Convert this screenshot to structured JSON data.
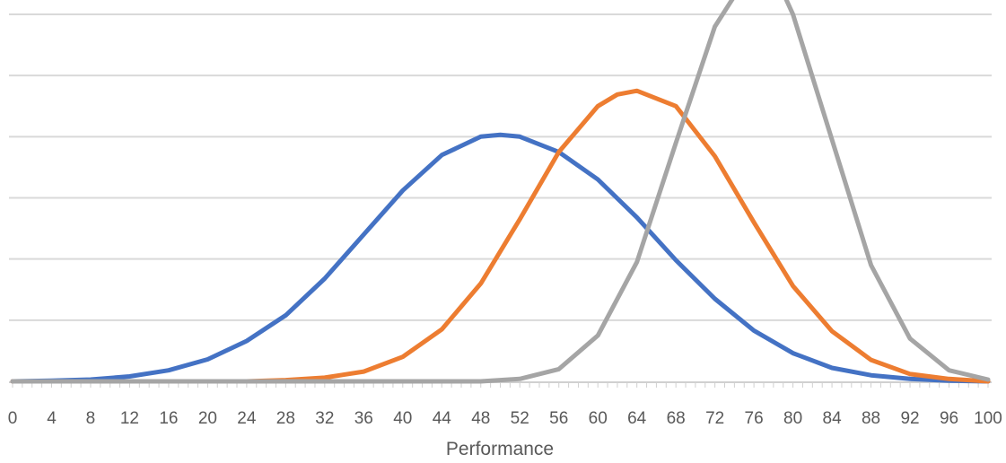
{
  "chart_data": {
    "type": "line",
    "title": "",
    "xlabel": "Performance",
    "ylabel": "",
    "xlim": [
      0,
      100
    ],
    "ylim": [
      0,
      0.06
    ],
    "x_tick_labels": [
      "0",
      "4",
      "8",
      "12",
      "16",
      "20",
      "24",
      "28",
      "32",
      "36",
      "40",
      "44",
      "48",
      "52",
      "56",
      "60",
      "64",
      "68",
      "72",
      "76",
      "80",
      "84",
      "88",
      "92",
      "96",
      "100"
    ],
    "gridlines": "horizontal",
    "legend": "none",
    "series": [
      {
        "color": "#4472C4",
        "x": [
          0,
          4,
          8,
          12,
          16,
          20,
          24,
          28,
          32,
          36,
          40,
          44,
          48,
          50,
          52,
          56,
          60,
          64,
          68,
          72,
          76,
          80,
          84,
          88,
          92,
          96,
          100
        ],
        "y": [
          0.0,
          0.0001,
          0.0003,
          0.0008,
          0.0018,
          0.0036,
          0.0066,
          0.0108,
          0.0168,
          0.024,
          0.0312,
          0.037,
          0.04,
          0.0403,
          0.04,
          0.0375,
          0.033,
          0.0268,
          0.0198,
          0.0135,
          0.0083,
          0.0046,
          0.0022,
          0.001,
          0.0004,
          0.0001,
          0.0
        ]
      },
      {
        "color": "#ED7D31",
        "x": [
          0,
          24,
          28,
          32,
          36,
          40,
          44,
          48,
          52,
          56,
          60,
          62,
          64,
          68,
          72,
          76,
          80,
          84,
          88,
          92,
          96,
          100
        ],
        "y": [
          0.0,
          0.0,
          0.0002,
          0.0006,
          0.0016,
          0.004,
          0.0085,
          0.016,
          0.0265,
          0.0375,
          0.045,
          0.0469,
          0.0475,
          0.045,
          0.0368,
          0.026,
          0.0156,
          0.0082,
          0.0035,
          0.0012,
          0.0004,
          0.0
        ]
      },
      {
        "color": "#A5A5A5",
        "x": [
          0,
          48,
          52,
          56,
          60,
          64,
          68,
          72,
          76,
          78,
          80,
          84,
          88,
          92,
          96,
          100
        ],
        "y": [
          0.0,
          0.0,
          0.0004,
          0.002,
          0.0075,
          0.0195,
          0.039,
          0.058,
          0.068,
          0.067,
          0.06,
          0.0395,
          0.019,
          0.007,
          0.0018,
          0.0003
        ]
      }
    ]
  }
}
